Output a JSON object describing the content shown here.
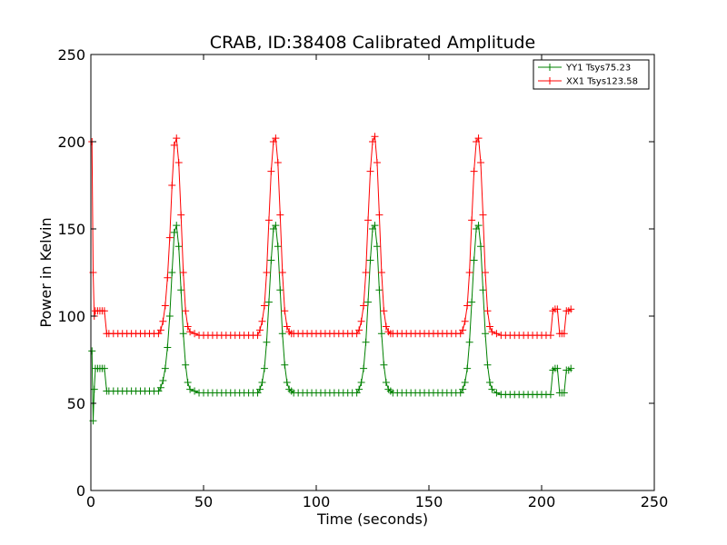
{
  "chart_data": {
    "type": "line",
    "title": "CRAB, ID:38408 Calibrated Amplitude",
    "xlabel": "Time (seconds)",
    "ylabel": "Power in Kelvin",
    "xlim": [
      0,
      250
    ],
    "ylim": [
      0,
      250
    ],
    "xticks": [
      0,
      50,
      100,
      150,
      200,
      250
    ],
    "yticks": [
      0,
      50,
      100,
      150,
      200,
      250
    ],
    "grid": false,
    "legend_position": "top-right",
    "marker": "+",
    "series": [
      {
        "name": "YY1 Tsys75.23",
        "color": "#008000",
        "x": [
          0.5,
          1,
          1.5,
          2,
          3,
          4,
          5,
          6,
          7,
          8,
          10,
          12,
          14,
          16,
          18,
          20,
          22,
          24,
          26,
          28,
          30,
          31,
          32,
          33,
          34,
          35,
          36,
          37,
          38,
          39,
          40,
          41,
          42,
          43,
          44,
          46,
          48,
          50,
          52,
          54,
          56,
          58,
          60,
          62,
          64,
          66,
          68,
          70,
          72,
          74,
          75,
          76,
          77,
          78,
          79,
          80,
          81,
          82,
          83,
          84,
          85,
          86,
          87,
          88,
          89,
          90,
          92,
          94,
          96,
          98,
          100,
          102,
          104,
          106,
          108,
          110,
          112,
          114,
          116,
          118,
          119,
          120,
          121,
          122,
          123,
          124,
          125,
          126,
          127,
          128,
          129,
          130,
          131,
          132,
          133,
          134,
          136,
          138,
          140,
          142,
          144,
          146,
          148,
          150,
          152,
          154,
          156,
          158,
          160,
          162,
          164,
          165,
          166,
          167,
          168,
          169,
          170,
          171,
          172,
          173,
          174,
          175,
          176,
          177,
          178,
          180,
          182,
          184,
          186,
          188,
          190,
          192,
          194,
          196,
          198,
          200,
          202,
          204,
          205,
          206,
          207,
          208,
          209,
          210,
          211,
          212,
          213
        ],
        "values": [
          80,
          40,
          58,
          70,
          70,
          70,
          70,
          70,
          57,
          57,
          57,
          57,
          57,
          57,
          57,
          57,
          57,
          57,
          57,
          57,
          57,
          59,
          63,
          70,
          82,
          100,
          125,
          148,
          152,
          140,
          115,
          90,
          72,
          62,
          58,
          57,
          56,
          56,
          56,
          56,
          56,
          56,
          56,
          56,
          56,
          56,
          56,
          56,
          56,
          56,
          58,
          62,
          70,
          85,
          108,
          132,
          150,
          152,
          140,
          115,
          90,
          72,
          62,
          58,
          57,
          56,
          56,
          56,
          56,
          56,
          56,
          56,
          56,
          56,
          56,
          56,
          56,
          56,
          56,
          56,
          58,
          62,
          70,
          85,
          108,
          132,
          150,
          152,
          140,
          115,
          90,
          72,
          62,
          58,
          57,
          56,
          56,
          56,
          56,
          56,
          56,
          56,
          56,
          56,
          56,
          56,
          56,
          56,
          56,
          56,
          56,
          58,
          62,
          70,
          85,
          108,
          132,
          150,
          152,
          140,
          115,
          90,
          72,
          62,
          58,
          56,
          55,
          55,
          55,
          55,
          55,
          55,
          55,
          55,
          55,
          55,
          55,
          55,
          69,
          70,
          70,
          56,
          56,
          56,
          69,
          69,
          70
        ]
      },
      {
        "name": "XX1 Tsys123.58",
        "color": "#ff0000",
        "x": [
          0.5,
          1,
          1.5,
          2,
          3,
          4,
          5,
          6,
          7,
          8,
          10,
          12,
          14,
          16,
          18,
          20,
          22,
          24,
          26,
          28,
          30,
          31,
          32,
          33,
          34,
          35,
          36,
          37,
          38,
          39,
          40,
          41,
          42,
          43,
          44,
          46,
          48,
          50,
          52,
          54,
          56,
          58,
          60,
          62,
          64,
          66,
          68,
          70,
          72,
          74,
          75,
          76,
          77,
          78,
          79,
          80,
          81,
          82,
          83,
          84,
          85,
          86,
          87,
          88,
          89,
          90,
          92,
          94,
          96,
          98,
          100,
          102,
          104,
          106,
          108,
          110,
          112,
          114,
          116,
          118,
          119,
          120,
          121,
          122,
          123,
          124,
          125,
          126,
          127,
          128,
          129,
          130,
          131,
          132,
          133,
          134,
          136,
          138,
          140,
          142,
          144,
          146,
          148,
          150,
          152,
          154,
          156,
          158,
          160,
          162,
          164,
          165,
          166,
          167,
          168,
          169,
          170,
          171,
          172,
          173,
          174,
          175,
          176,
          177,
          178,
          180,
          182,
          184,
          186,
          188,
          190,
          192,
          194,
          196,
          198,
          200,
          202,
          204,
          205,
          206,
          207,
          208,
          209,
          210,
          211,
          212,
          213
        ],
        "values": [
          200,
          125,
          100,
          103,
          103,
          103,
          103,
          103,
          90,
          90,
          90,
          90,
          90,
          90,
          90,
          90,
          90,
          90,
          90,
          90,
          90,
          92,
          97,
          106,
          122,
          145,
          175,
          198,
          202,
          188,
          158,
          125,
          103,
          94,
          91,
          90,
          89,
          89,
          89,
          89,
          89,
          89,
          89,
          89,
          89,
          89,
          89,
          89,
          89,
          89,
          92,
          97,
          106,
          125,
          155,
          183,
          200,
          202,
          188,
          158,
          125,
          103,
          94,
          91,
          90,
          90,
          90,
          90,
          90,
          90,
          90,
          90,
          90,
          90,
          90,
          90,
          90,
          90,
          90,
          90,
          92,
          97,
          106,
          125,
          155,
          183,
          200,
          203,
          188,
          158,
          125,
          103,
          94,
          91,
          90,
          90,
          90,
          90,
          90,
          90,
          90,
          90,
          90,
          90,
          90,
          90,
          90,
          90,
          90,
          90,
          90,
          92,
          97,
          106,
          125,
          155,
          183,
          200,
          202,
          188,
          158,
          125,
          103,
          94,
          91,
          90,
          89,
          89,
          89,
          89,
          89,
          89,
          89,
          89,
          89,
          89,
          89,
          89,
          103,
          104,
          104,
          90,
          90,
          90,
          103,
          103,
          104
        ]
      }
    ]
  }
}
